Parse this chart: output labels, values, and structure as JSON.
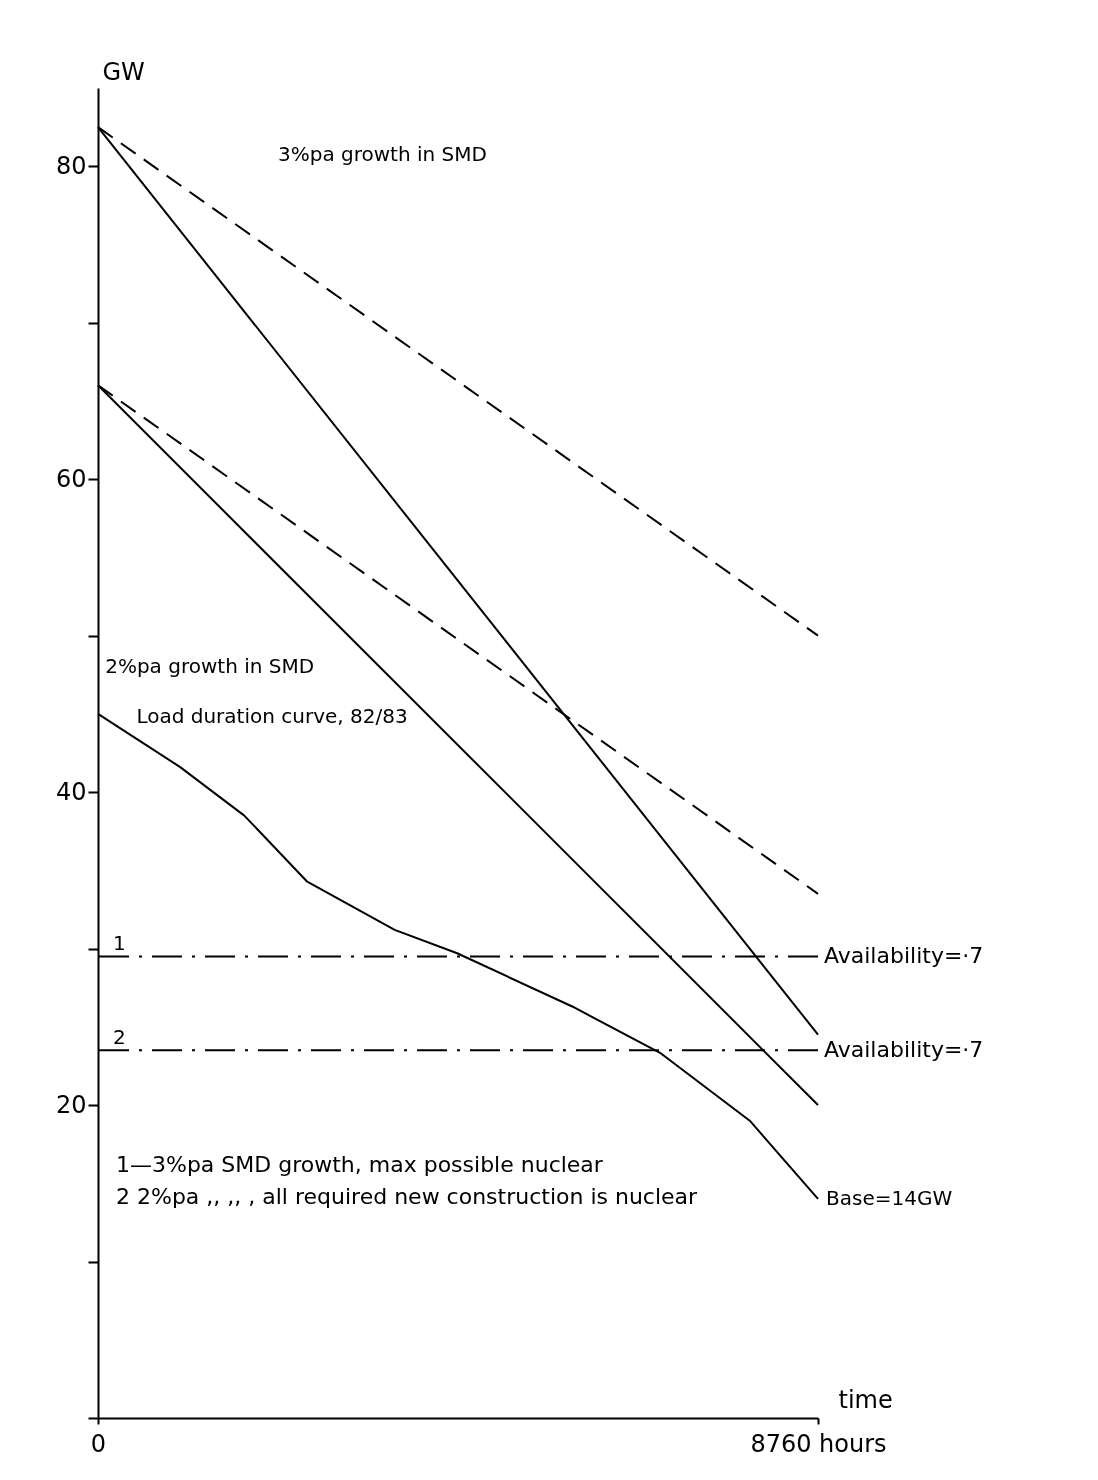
{
  "chart_data": {
    "type": "line",
    "ylabel": "GW",
    "xlabel": "time",
    "xlim": [
      0,
      8760
    ],
    "xticks": [
      0,
      {
        "value": 8760,
        "label": "8760  hours"
      }
    ],
    "ylim": [
      0,
      85
    ],
    "yticks": [
      {
        "value": 0,
        "label": null
      },
      {
        "value": 10,
        "label": null
      },
      20,
      {
        "value": 30,
        "label": null
      },
      40,
      {
        "value": 50,
        "label": null
      },
      60,
      {
        "value": 70,
        "label": null
      },
      80
    ],
    "grid": false,
    "marker": "none",
    "series": [
      {
        "color": "#000000",
        "line_style": "dashed",
        "x": [
          0,
          8760
        ],
        "values": [
          82.5,
          50
        ]
      },
      {
        "color": "#000000",
        "line_style": "solid",
        "x": [
          0,
          8760
        ],
        "values": [
          82.5,
          24.5
        ]
      },
      {
        "color": "#000000",
        "line_style": "dashed",
        "x": [
          0,
          8760
        ],
        "values": [
          66,
          33.5
        ]
      },
      {
        "color": "#000000",
        "line_style": "solid",
        "x": [
          0,
          8760
        ],
        "values": [
          66,
          20
        ]
      },
      {
        "color": "#000000",
        "line_style": "solid",
        "x": [
          0,
          1000,
          1780,
          2540,
          3610,
          4370,
          5770,
          6850,
          7930,
          8760
        ],
        "values": [
          45,
          41.6,
          38.5,
          34.3,
          31.2,
          29.7,
          26.3,
          23.3,
          19,
          14
        ]
      }
    ],
    "ref_lines": [
      {
        "axis": "y",
        "value": 29.5,
        "label": "Availability=·7",
        "line_style": "dashed",
        "color": "#000000"
      },
      {
        "axis": "y",
        "value": 23.5,
        "label": "Availability=·7",
        "line_style": "dashed",
        "color": "#000000"
      }
    ],
    "annotations": [
      "3%pa growth in SMD",
      "2%pa growth in SMD",
      {
        "text": "Load duration curve, 82/83",
        "x": 1100,
        "y": 41.5
      },
      {
        "text": "1",
        "x": 0,
        "y": 29.5
      },
      {
        "text": "2",
        "x": 0,
        "y": 23.5
      },
      {
        "text": "Base=14GW",
        "x": 8760,
        "y": 14
      },
      "1—3%pa SMD growth, max possible nuclear",
      "2  2%pa  ,,      ,,    , all required new construction is nuclear"
    ]
  }
}
